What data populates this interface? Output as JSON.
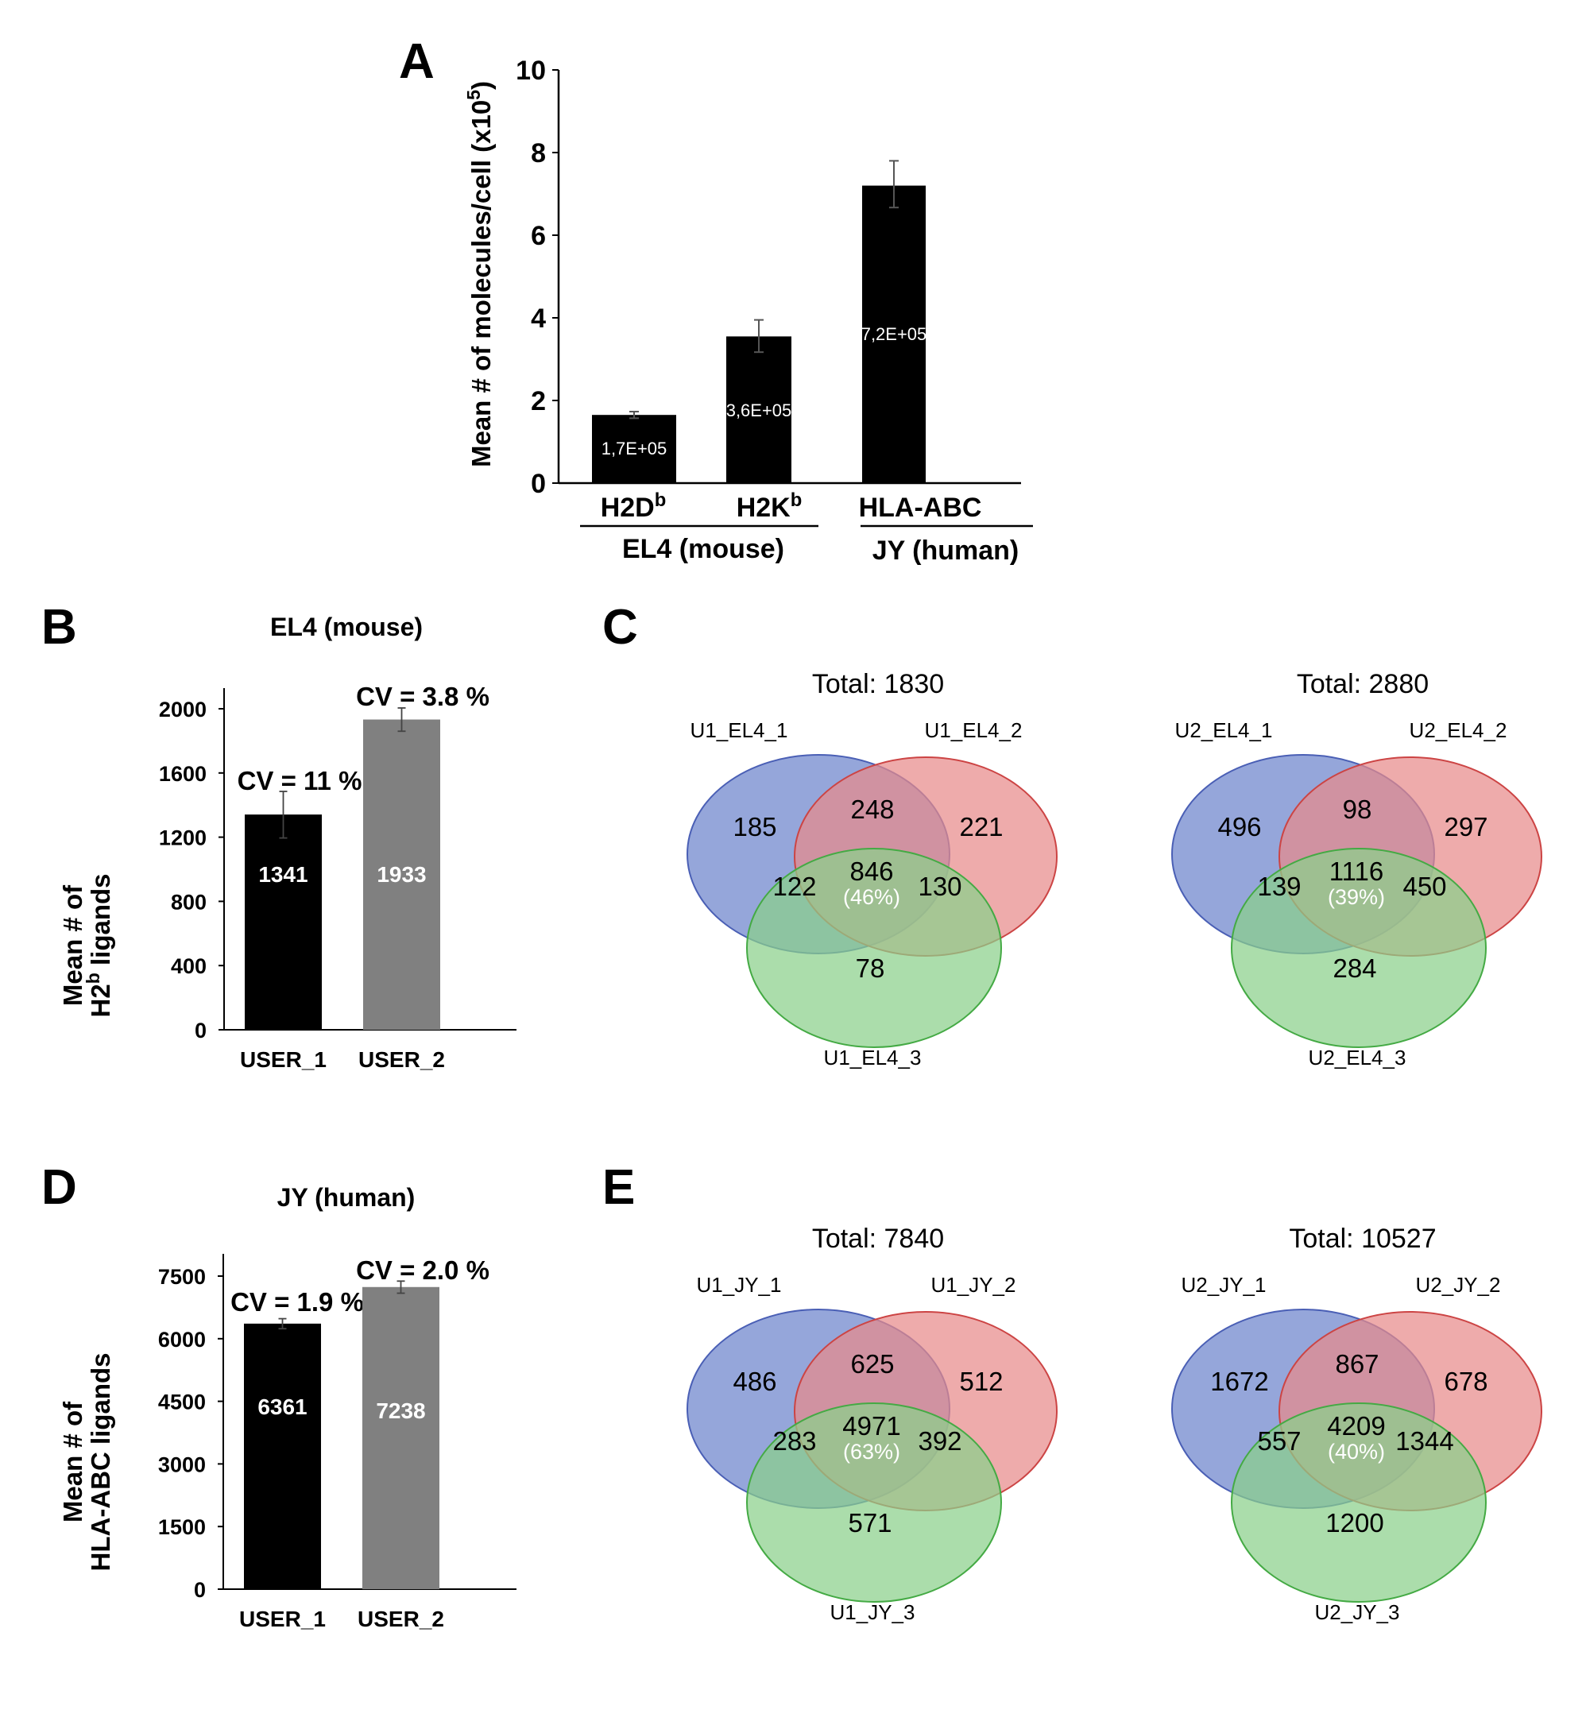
{
  "panel_letters": {
    "a": "A",
    "b": "B",
    "c": "C",
    "d": "D",
    "e": "E"
  },
  "chart_data": [
    {
      "id": "A",
      "type": "bar",
      "title": "",
      "ylabel": "Mean # of molecules/cell (x10^5)",
      "ylabel_main": "Mean # of molecules/cell (x10",
      "ylabel_sup": "5",
      "ylabel_tail": ")",
      "ylim": [
        0,
        10
      ],
      "yticks": [
        "0",
        "2",
        "4",
        "6",
        "8",
        "10"
      ],
      "ytick_values": [
        0,
        2,
        4,
        6,
        8,
        10
      ],
      "categories": [
        {
          "base": "H2D",
          "sup": "b"
        },
        {
          "base": "H2K",
          "sup": "b"
        },
        {
          "base": "HLA-ABC",
          "sup": ""
        }
      ],
      "values": [
        1.65,
        3.55,
        7.2
      ],
      "errors": [
        [
          1.57,
          1.73
        ],
        [
          3.17,
          3.95
        ],
        [
          6.67,
          7.8
        ]
      ],
      "data_labels": [
        "1,7E+05",
        "3,6E+05",
        "7,2E+05"
      ],
      "groups": [
        {
          "label": "EL4 (mouse)",
          "members": [
            0,
            1
          ]
        },
        {
          "label": "JY (human)",
          "members": [
            2
          ]
        }
      ],
      "bar_color": "#000000",
      "grid": false
    },
    {
      "id": "B",
      "type": "bar",
      "title": "EL4 (mouse)",
      "ylabel_line1": "Mean # of",
      "ylabel_line2_main": "H2",
      "ylabel_line2_sup": "b",
      "ylabel_line2_tail": " ligands",
      "ylim": [
        0,
        2100
      ],
      "yticks": [
        "0",
        "400",
        "800",
        "1200",
        "1600",
        "2000"
      ],
      "ytick_values": [
        0,
        400,
        800,
        1200,
        1600,
        2000
      ],
      "categories": [
        "USER_1",
        "USER_2"
      ],
      "values": [
        1341,
        1933
      ],
      "errors": [
        [
          1195,
          1485
        ],
        [
          1860,
          2005
        ]
      ],
      "data_labels": [
        "1341",
        "1933"
      ],
      "annotations": [
        "CV = 11 %",
        "CV = 3.8 %"
      ],
      "colors": [
        "#000000",
        "#808080"
      ],
      "grid": false
    },
    {
      "id": "D",
      "type": "bar",
      "title": "JY (human)",
      "ylabel_line1": "Mean # of",
      "ylabel_line2_main": "HLA-ABC ligands",
      "ylim": [
        0,
        7900
      ],
      "yticks": [
        "0",
        "1500",
        "3000",
        "4500",
        "6000",
        "7500"
      ],
      "ytick_values": [
        0,
        1500,
        3000,
        4500,
        6000,
        7500
      ],
      "categories": [
        "USER_1",
        "USER_2"
      ],
      "values": [
        6361,
        7238
      ],
      "errors": [
        [
          6240,
          6480
        ],
        [
          7090,
          7380
        ]
      ],
      "data_labels": [
        "6361",
        "7238"
      ],
      "annotations": [
        "CV = 1.9 %",
        "CV = 2.0 %"
      ],
      "colors": [
        "#000000",
        "#808080"
      ],
      "grid": false
    }
  ],
  "venn": {
    "colors": {
      "set1": "#8a9cd6",
      "set2": "#e88a8a",
      "set3": "#8ad08a",
      "stroke1": "#4a5fb5",
      "stroke2": "#cc4444",
      "stroke3": "#44aa44"
    },
    "diagrams": [
      {
        "id": "C1",
        "panel": "C",
        "total": "Total: 1830",
        "sets": [
          "U1_EL4_1",
          "U1_EL4_2",
          "U1_EL4_3"
        ],
        "only1": "185",
        "only2": "221",
        "only3": "78",
        "s12": "248",
        "s13": "122",
        "s23": "130",
        "s123": "846",
        "pct": "(46%)"
      },
      {
        "id": "C2",
        "panel": "C",
        "total": "Total: 2880",
        "sets": [
          "U2_EL4_1",
          "U2_EL4_2",
          "U2_EL4_3"
        ],
        "only1": "496",
        "only2": "297",
        "only3": "284",
        "s12": "98",
        "s13": "139",
        "s23": "450",
        "s123": "1116",
        "pct": "(39%)"
      },
      {
        "id": "E1",
        "panel": "E",
        "total": "Total: 7840",
        "sets": [
          "U1_JY_1",
          "U1_JY_2",
          "U1_JY_3"
        ],
        "only1": "486",
        "only2": "512",
        "only3": "571",
        "s12": "625",
        "s13": "283",
        "s23": "392",
        "s123": "4971",
        "pct": "(63%)"
      },
      {
        "id": "E2",
        "panel": "E",
        "total": "Total: 10527",
        "sets": [
          "U2_JY_1",
          "U2_JY_2",
          "U2_JY_3"
        ],
        "only1": "1672",
        "only2": "678",
        "only3": "1200",
        "s12": "867",
        "s13": "557",
        "s23": "1344",
        "s123": "4209",
        "pct": "(40%)"
      }
    ]
  }
}
